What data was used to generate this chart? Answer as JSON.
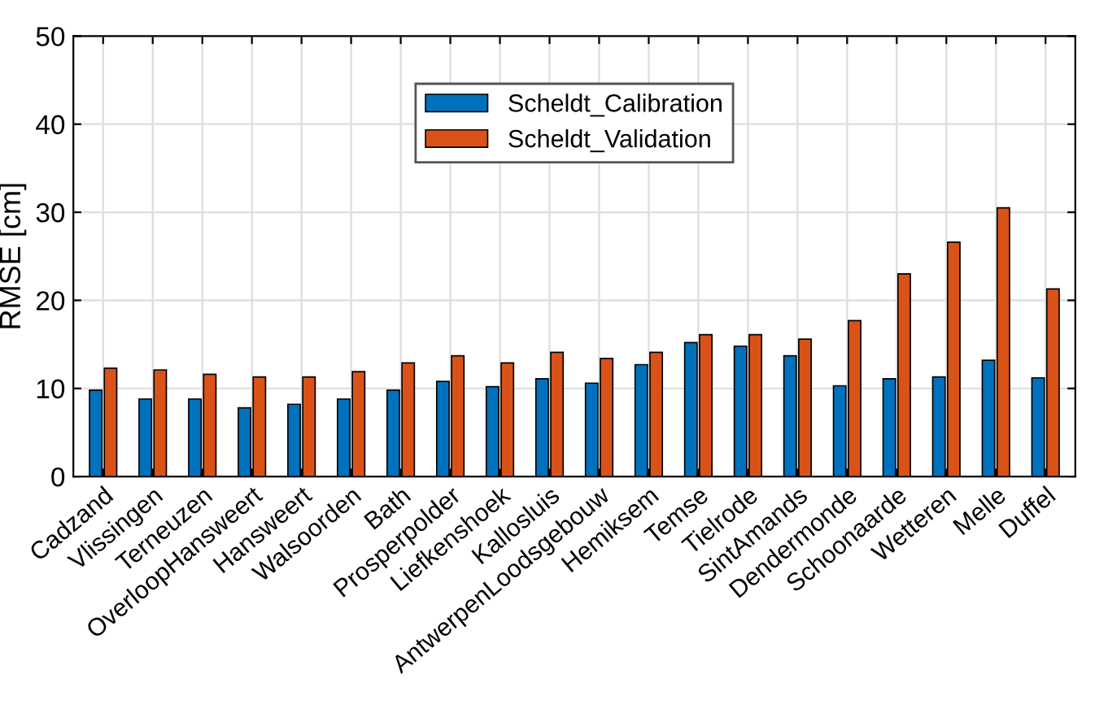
{
  "chart_data": {
    "type": "bar",
    "ylabel": "RMSE [cm]",
    "categories": [
      "Cadzand",
      "Vlissingen",
      "Terneuzen",
      "OverloopHansweert",
      "Hansweert",
      "Walsoorden",
      "Bath",
      "Prosperpolder",
      "Liefkenshoek",
      "Kallosluis",
      "AntwerpenLoodsgebouw",
      "Hemiksem",
      "Temse",
      "Tielrode",
      "SintAmands",
      "Dendermonde",
      "Schoonaarde",
      "Wetteren",
      "Melle",
      "Duffel"
    ],
    "series": [
      {
        "name": "Scheldt_Calibration",
        "color": "#0072bd",
        "values": [
          9.8,
          8.8,
          8.8,
          7.8,
          8.2,
          8.8,
          9.8,
          10.8,
          10.2,
          11.1,
          10.6,
          12.7,
          15.2,
          14.8,
          13.7,
          10.3,
          11.1,
          11.3,
          13.2,
          11.2
        ]
      },
      {
        "name": "Scheldt_Validation",
        "color": "#d95319",
        "values": [
          12.3,
          12.1,
          11.6,
          11.3,
          11.3,
          11.9,
          12.9,
          13.7,
          12.9,
          14.1,
          13.4,
          14.1,
          16.1,
          16.1,
          15.6,
          17.7,
          23.0,
          26.6,
          30.5,
          21.3
        ]
      }
    ],
    "ylim": [
      0,
      50
    ],
    "yticks": [
      0,
      10,
      20,
      30,
      40,
      50
    ],
    "grid": true,
    "legend": "top"
  }
}
